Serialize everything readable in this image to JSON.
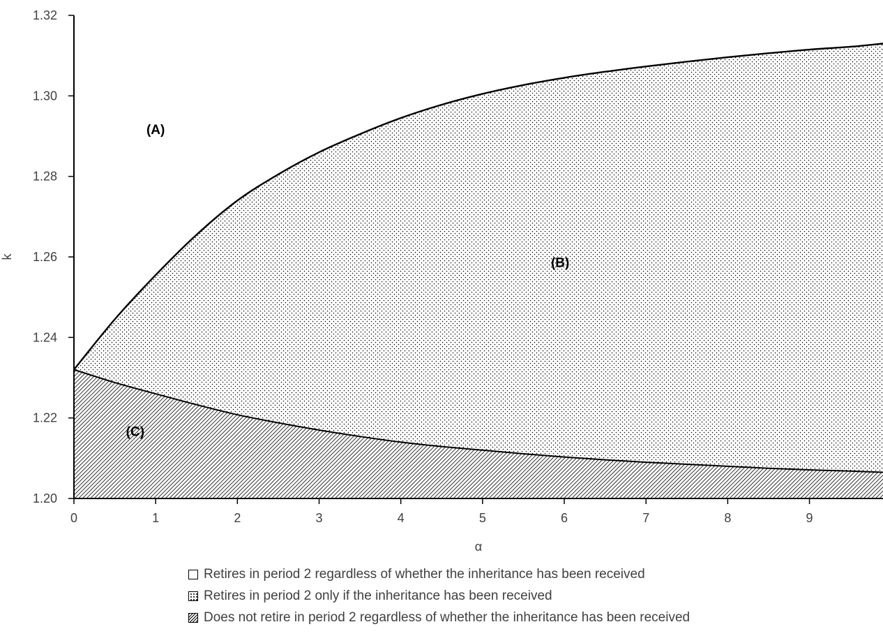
{
  "chart_data": {
    "type": "area",
    "xlabel": "α",
    "ylabel": "k",
    "xlim": [
      0,
      9.9
    ],
    "ylim": [
      1.2,
      1.32
    ],
    "x_ticks": [
      0,
      1,
      2,
      3,
      4,
      5,
      6,
      7,
      8,
      9
    ],
    "x_tick_labels": [
      "0",
      "1",
      "2",
      "3",
      "4",
      "5",
      "6",
      "7",
      "8",
      "9"
    ],
    "y_ticks": [
      1.2,
      1.22,
      1.24,
      1.26,
      1.28,
      1.3,
      1.32
    ],
    "y_tick_labels": [
      "1.20",
      "1.22",
      "1.24",
      "1.26",
      "1.28",
      "1.30",
      "1.32"
    ],
    "grid": false,
    "x": [
      0,
      0.5,
      1,
      1.5,
      2,
      2.5,
      3,
      3.5,
      4,
      4.5,
      5,
      5.5,
      6,
      6.5,
      7,
      7.5,
      8,
      8.5,
      9,
      9.5,
      9.9
    ],
    "series": [
      {
        "values": [
          1.232,
          1.2445,
          1.2555,
          1.2655,
          1.274,
          1.2805,
          1.286,
          1.2905,
          1.2945,
          1.2978,
          1.3005,
          1.3027,
          1.3045,
          1.306,
          1.3073,
          1.3085,
          1.3096,
          1.3106,
          1.3115,
          1.3122,
          1.313
        ]
      },
      {
        "values": [
          1.232,
          1.2288,
          1.226,
          1.2233,
          1.2208,
          1.2188,
          1.217,
          1.2154,
          1.214,
          1.2129,
          1.212,
          1.2111,
          1.2103,
          1.2096,
          1.209,
          1.2085,
          1.208,
          1.2075,
          1.2071,
          1.2068,
          1.2065
        ]
      }
    ],
    "regions": [
      {
        "label": "(A)",
        "x": 1.0,
        "y": 1.2905
      },
      {
        "label": "(B)",
        "x": 5.95,
        "y": 1.2575
      },
      {
        "label": "(C)",
        "x": 0.75,
        "y": 1.2155
      }
    ],
    "legend": [
      {
        "pattern": "blank",
        "label": "Retires in period 2 regardless of whether the inheritance has been received"
      },
      {
        "pattern": "dots",
        "label": "Retires in period 2 only if the inheritance has been received"
      },
      {
        "pattern": "hatch",
        "label": "Does not retire in period 2 regardless of whether the inheritance has been received"
      }
    ],
    "legend_position": "bottom"
  }
}
